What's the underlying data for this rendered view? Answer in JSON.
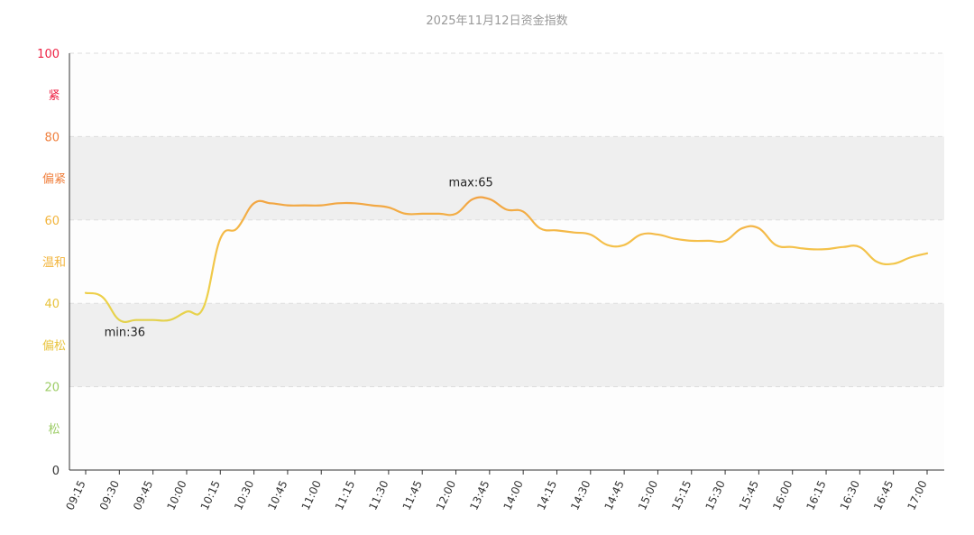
{
  "chart_data": {
    "type": "line",
    "title": "2025年11月12日资金指数",
    "ylim": [
      0,
      100
    ],
    "y_ticks": [
      {
        "value": 0,
        "label": "0",
        "color": "#333333"
      },
      {
        "value": 20,
        "label": "20",
        "color": "#9ccc65"
      },
      {
        "value": 40,
        "label": "40",
        "color": "#e8c33d"
      },
      {
        "value": 60,
        "label": "60",
        "color": "#f2b43b"
      },
      {
        "value": 80,
        "label": "80",
        "color": "#f07f3c"
      },
      {
        "value": 100,
        "label": "100",
        "color": "#ee2244"
      }
    ],
    "zones": [
      {
        "from": 0,
        "to": 20,
        "label": "松",
        "color": "#9ccc65",
        "band": "#fdfdfd"
      },
      {
        "from": 20,
        "to": 40,
        "label": "偏松",
        "color": "#e8c33d",
        "band": "#efefef"
      },
      {
        "from": 40,
        "to": 60,
        "label": "温和",
        "color": "#f2b43b",
        "band": "#fdfdfd"
      },
      {
        "from": 60,
        "to": 80,
        "label": "偏紧",
        "color": "#f07f3c",
        "band": "#efefef"
      },
      {
        "from": 80,
        "to": 100,
        "label": "紧",
        "color": "#ee2244",
        "band": "#fdfdfd"
      }
    ],
    "x_labels": [
      "09:15",
      "09:30",
      "09:45",
      "10:00",
      "10:15",
      "10:30",
      "10:45",
      "11:00",
      "11:15",
      "11:30",
      "11:45",
      "12:00",
      "13:45",
      "14:00",
      "14:15",
      "14:30",
      "14:45",
      "15:00",
      "15:15",
      "15:30",
      "15:45",
      "16:00",
      "16:15",
      "16:30",
      "16:45",
      "17:00"
    ],
    "series": [
      {
        "values": [
          42.5,
          41.5,
          36,
          36,
          36,
          36,
          38,
          39,
          55.5,
          58,
          64,
          64,
          63.5,
          63.5,
          63.5,
          64,
          64,
          63.5,
          63,
          61.5,
          61.5,
          61.5,
          61.5,
          65,
          65,
          62.5,
          62,
          58,
          57.5,
          57,
          56.5,
          54,
          54,
          56.5,
          56.5,
          55.5,
          55,
          55,
          55,
          58,
          58,
          54,
          53.5,
          53,
          53,
          53.5,
          53.5,
          50,
          49.5,
          51,
          52
        ]
      }
    ],
    "annotations": [
      {
        "text": "max:65",
        "x_index": 23,
        "value": 65
      },
      {
        "text": "min:36",
        "x_index": 2,
        "value": 36
      }
    ],
    "grid": true,
    "legend": "none"
  }
}
